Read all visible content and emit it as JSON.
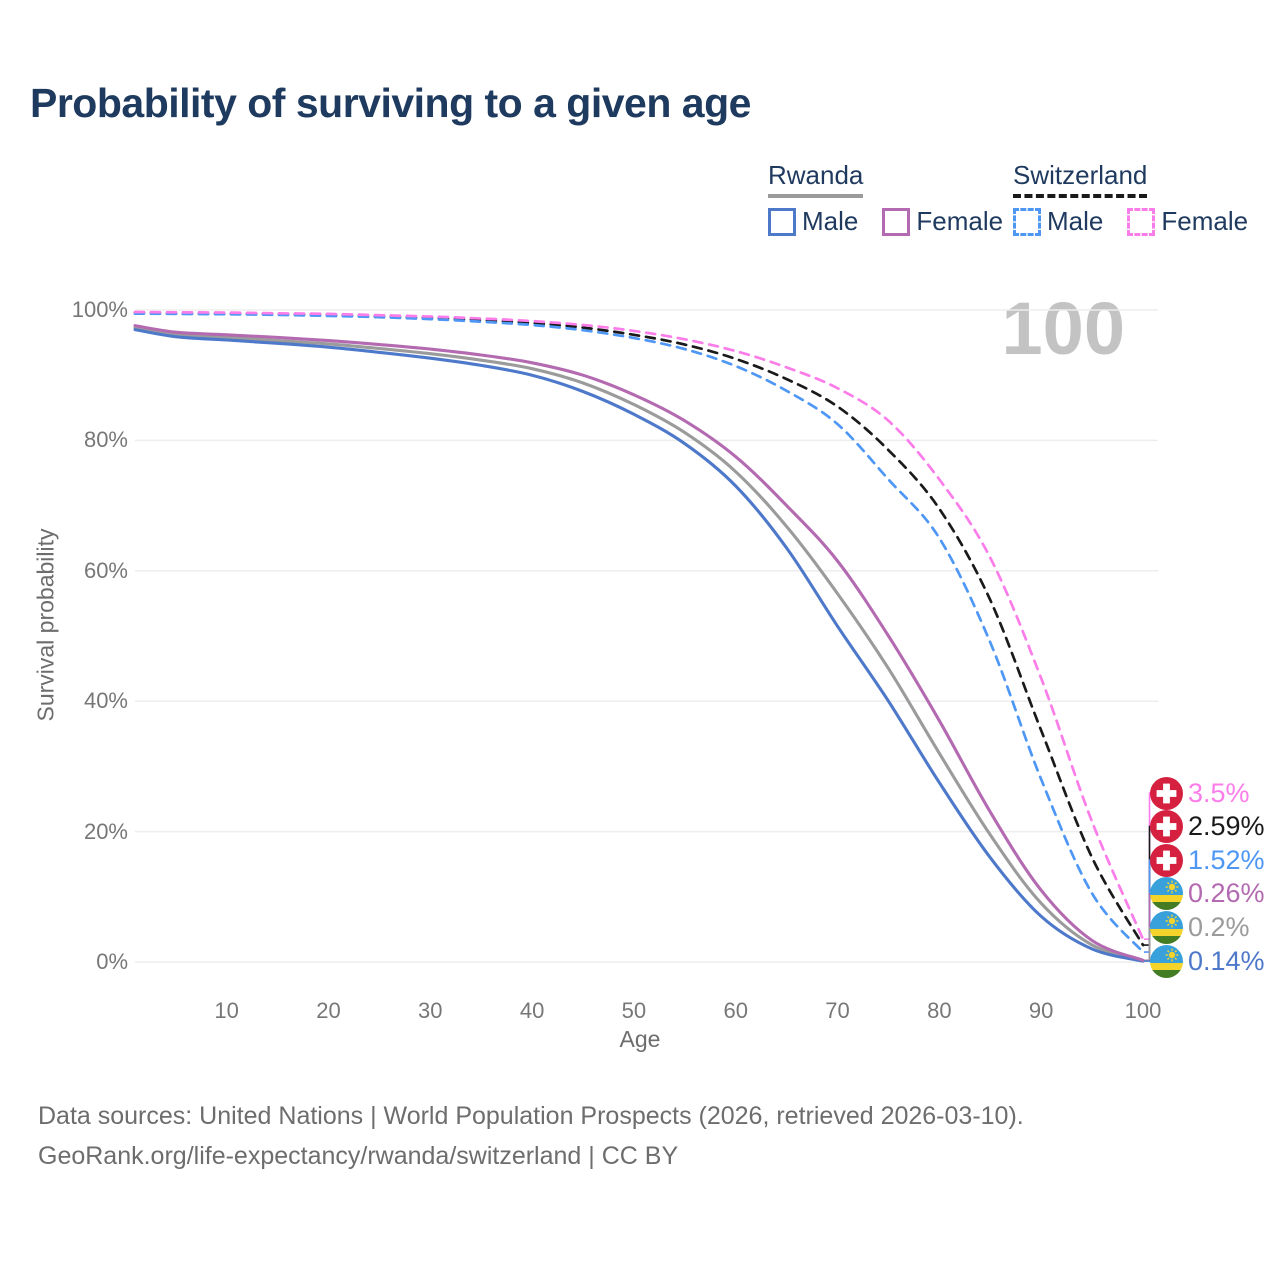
{
  "page": {
    "title": "Probability of surviving to a given age",
    "watermark_age": "100",
    "footer_line1": "Data sources: United Nations | World Population Prospects (2026, retrieved 2026-03-10).",
    "footer_line2": "GeoRank.org/life-expectancy/rwanda/switzerland | CC BY"
  },
  "colors": {
    "title_text": "#1e3a5e",
    "tick_text": "#777777",
    "muted_text": "#6d6d6d",
    "gridline": "#ededed",
    "watermark": "#c3c3c3",
    "swiss_flag_red": "#d5203f",
    "rwanda_flag_blue": "#38a1dc",
    "rwanda_flag_yellow": "#f4d32a",
    "rwanda_flag_green": "#427c23"
  },
  "legend": {
    "groups": [
      {
        "name": "Rwanda",
        "line_style": "solid",
        "line_color": "#9b9b9b",
        "items": [
          {
            "label": "Male",
            "color": "#4e79ca"
          },
          {
            "label": "Female",
            "color": "#b36ab0"
          }
        ]
      },
      {
        "name": "Switzerland",
        "line_style": "dashed",
        "line_color": "#1a1a1a",
        "items": [
          {
            "label": "Male",
            "color": "#4e97f5"
          },
          {
            "label": "Female",
            "color": "#fb7de9"
          }
        ]
      }
    ]
  },
  "chart_data": {
    "type": "line",
    "title": "Probability of surviving to a given age",
    "xlabel": "Age",
    "ylabel": "Survival probability",
    "xlim": [
      1,
      100
    ],
    "ylim": [
      0,
      100
    ],
    "grid": true,
    "legend_position": "top-right",
    "hover_age": 100,
    "x_ticks": [
      10,
      20,
      30,
      40,
      50,
      60,
      70,
      80,
      90,
      100
    ],
    "y_tick_values": [
      0,
      20,
      40,
      60,
      80,
      100
    ],
    "y_tick_labels": [
      "0%",
      "20%",
      "40%",
      "60%",
      "80%",
      "100%"
    ],
    "x": [
      1,
      5,
      10,
      15,
      20,
      25,
      30,
      35,
      40,
      45,
      50,
      55,
      60,
      65,
      70,
      75,
      80,
      85,
      90,
      95,
      100
    ],
    "series": [
      {
        "name": "Rwanda Both sexes",
        "country": "Rwanda",
        "sex": "both",
        "color": "#9b9b9b",
        "dash": false,
        "flag": "rwanda",
        "end_label": "0.2%",
        "values": [
          97.3,
          96.2,
          95.8,
          95.3,
          94.8,
          94.1,
          93.3,
          92.3,
          91.0,
          88.8,
          85.5,
          81.2,
          75.2,
          66.8,
          56.5,
          45.0,
          32.0,
          19.5,
          9.0,
          2.6,
          0.2
        ]
      },
      {
        "name": "Rwanda Male",
        "country": "Rwanda",
        "sex": "male",
        "color": "#4e79ca",
        "dash": false,
        "flag": "rwanda",
        "end_label": "0.14%",
        "values": [
          97.0,
          95.9,
          95.4,
          94.9,
          94.3,
          93.5,
          92.6,
          91.5,
          90.0,
          87.5,
          84.0,
          79.5,
          73.0,
          63.5,
          51.5,
          40.0,
          27.5,
          16.0,
          7.0,
          2.0,
          0.14
        ]
      },
      {
        "name": "Rwanda Female",
        "country": "Rwanda",
        "sex": "female",
        "color": "#b36ab0",
        "dash": false,
        "flag": "rwanda",
        "end_label": "0.26%",
        "values": [
          97.6,
          96.6,
          96.2,
          95.8,
          95.3,
          94.7,
          94.0,
          93.1,
          91.9,
          90.0,
          87.0,
          83.0,
          77.5,
          70.0,
          61.5,
          50.0,
          37.0,
          23.0,
          11.0,
          3.3,
          0.26
        ]
      },
      {
        "name": "Switzerland Both sexes",
        "country": "Switzerland",
        "sex": "both",
        "color": "#1a1a1a",
        "dash": true,
        "flag": "switzerland",
        "end_label": "2.59%",
        "values": [
          99.6,
          99.5,
          99.45,
          99.4,
          99.25,
          99.05,
          98.8,
          98.45,
          98.0,
          97.3,
          96.2,
          94.7,
          92.5,
          89.4,
          85.2,
          78.5,
          69.5,
          55.5,
          35.5,
          16.0,
          2.59
        ]
      },
      {
        "name": "Switzerland Male",
        "country": "Switzerland",
        "sex": "male",
        "color": "#4e97f5",
        "dash": true,
        "flag": "switzerland",
        "end_label": "1.52%",
        "values": [
          99.45,
          99.4,
          99.35,
          99.25,
          99.1,
          98.9,
          98.6,
          98.2,
          97.7,
          96.9,
          95.7,
          94.0,
          91.4,
          87.6,
          82.5,
          74.0,
          65.0,
          49.0,
          28.0,
          10.5,
          1.52
        ]
      },
      {
        "name": "Switzerland Female",
        "country": "Switzerland",
        "sex": "female",
        "color": "#fb7de9",
        "dash": true,
        "flag": "switzerland",
        "end_label": "3.5%",
        "values": [
          99.7,
          99.65,
          99.6,
          99.5,
          99.4,
          99.2,
          99.0,
          98.7,
          98.3,
          97.7,
          96.8,
          95.5,
          93.7,
          91.2,
          88.0,
          83.0,
          74.0,
          62.0,
          43.5,
          21.5,
          3.5
        ]
      }
    ]
  }
}
